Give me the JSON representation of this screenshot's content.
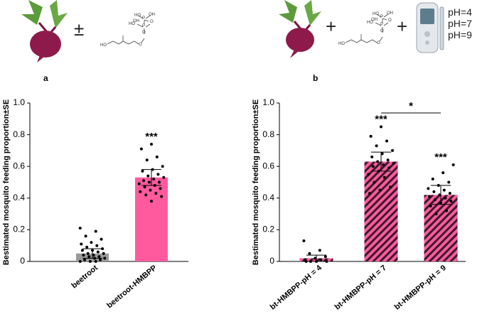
{
  "figure": {
    "panel_a": {
      "label": "a",
      "operator": "±"
    },
    "panel_b": {
      "label": "b",
      "operators": [
        "+",
        "+"
      ],
      "ph_labels": [
        "pH=4",
        "pH=7",
        "pH=9"
      ]
    },
    "structure_labels": [
      "OH",
      "HO",
      "P",
      "O",
      "O",
      "P",
      "O",
      "OH",
      "HO"
    ]
  },
  "chart_data": [
    {
      "type": "bar",
      "y_label": "Bestimated mosquito feeding proportion±SE",
      "categories": [
        "beetroot",
        "beetroot-HMBPP"
      ],
      "values": [
        0.05,
        0.53
      ],
      "errors": [
        0.03,
        0.05
      ],
      "colors": [
        "#9a9a9a",
        "#ff5a9e"
      ],
      "hatch": false,
      "significance": [
        null,
        "***"
      ],
      "points": [
        [
          0.21,
          0.19,
          0.16,
          0.14,
          0.12,
          0.11,
          0.1,
          0.09,
          0.08,
          0.07,
          0.07,
          0.06,
          0.05,
          0.05,
          0.04,
          0.04,
          0.03,
          0.03,
          0.02,
          0.02,
          0.01,
          0.01,
          0,
          0,
          0
        ],
        [
          0.74,
          0.71,
          0.66,
          0.64,
          0.6,
          0.58,
          0.57,
          0.55,
          0.54,
          0.53,
          0.52,
          0.51,
          0.5,
          0.5,
          0.49,
          0.48,
          0.47,
          0.46,
          0.45,
          0.44,
          0.43,
          0.42,
          0.41,
          0.38
        ]
      ],
      "ylim": [
        0,
        1
      ],
      "yticks": [
        0,
        0.2,
        0.4,
        0.6,
        0.8,
        {
          "value": 1,
          "label": "1.0"
        }
      ]
    },
    {
      "type": "bar",
      "y_label": "Bestimated mosquito feeding proportion±SE",
      "categories": [
        "bt-HMBPP-pH = 4",
        "bt-HMBPP-pH = 7",
        "bt-HMBPP-pH = 9"
      ],
      "values": [
        0.02,
        0.63,
        0.42
      ],
      "errors": [
        0.02,
        0.06,
        0.06
      ],
      "colors": [
        "#ff5a9e",
        "#ff5a9e",
        "#ff5a9e"
      ],
      "hatch": true,
      "significance": [
        null,
        "***",
        "***"
      ],
      "bracket_label": "*",
      "points": [
        [
          0.13,
          0.07,
          0.05,
          0.03,
          0.02,
          0.01,
          0.01,
          0,
          0,
          0,
          0
        ],
        [
          0.85,
          0.79,
          0.76,
          0.73,
          0.7,
          0.68,
          0.66,
          0.64,
          0.63,
          0.62,
          0.61,
          0.6,
          0.59,
          0.57,
          0.55,
          0.53,
          0.5,
          0.47,
          0.45,
          0.43
        ],
        [
          0.61,
          0.56,
          0.52,
          0.5,
          0.48,
          0.46,
          0.45,
          0.44,
          0.43,
          0.42,
          0.41,
          0.4,
          0.39,
          0.38,
          0.37,
          0.35,
          0.32,
          0.3
        ]
      ],
      "ylim": [
        0,
        1
      ],
      "yticks": [
        0,
        0.2,
        0.4,
        0.6,
        0.8,
        {
          "value": 1,
          "label": "1.0"
        }
      ]
    }
  ]
}
